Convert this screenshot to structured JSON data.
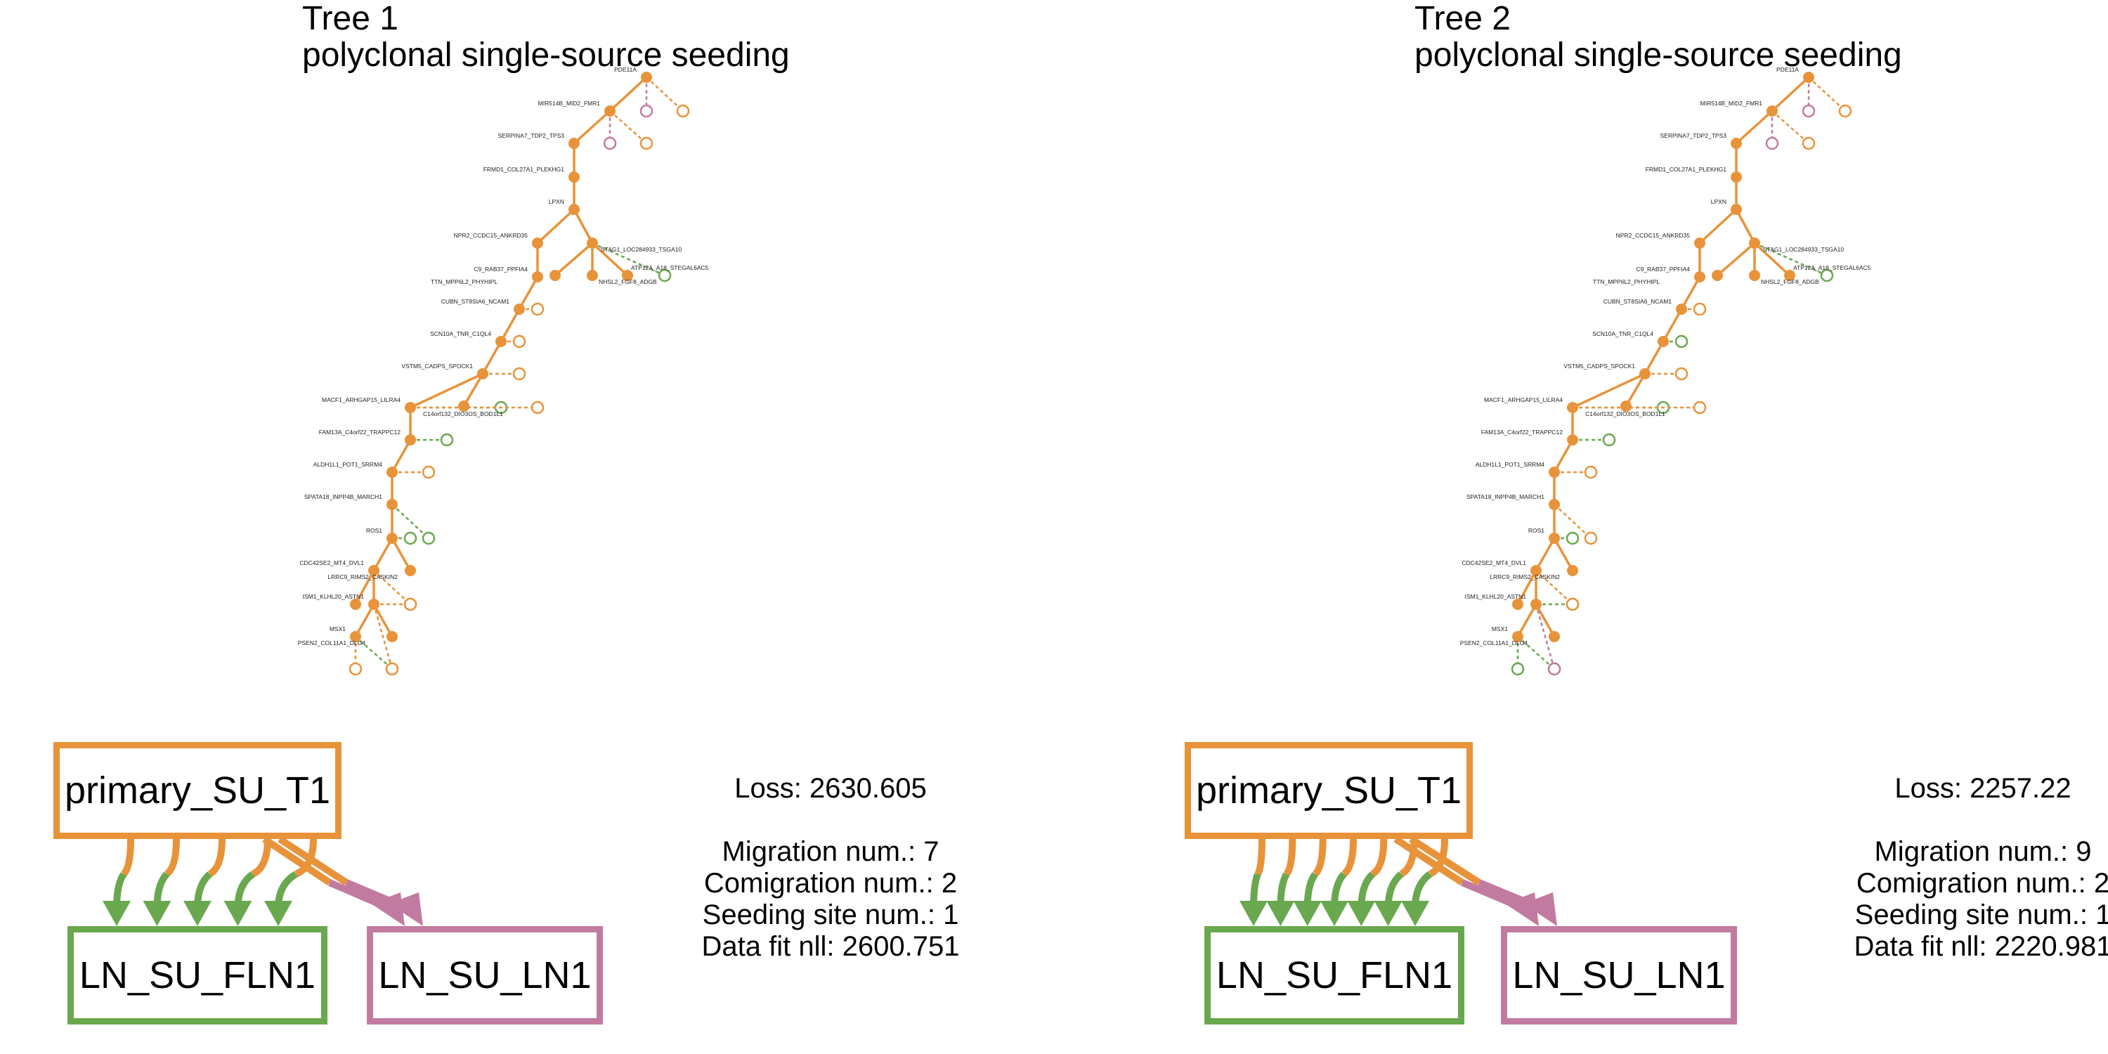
{
  "colors": {
    "primary": "#e8933a",
    "fln": "#6aa84f",
    "ln": "#c27ba0"
  },
  "panels": [
    {
      "title": "Tree 1",
      "subtitle": "polyclonal single-source seeding",
      "nodes": {
        "primary": "primary_SU_T1",
        "fln": "LN_SU_FLN1",
        "ln": "LN_SU_LN1"
      },
      "fln_arrows": 5,
      "ln_arrows": 2,
      "stats": {
        "loss": "Loss: 2630.605",
        "migration": "Migration num.: 7",
        "comigration": "Comigration num.: 2",
        "seeding": "Seeding site num.: 1",
        "datafit": "Data fit nll: 2600.751"
      },
      "leaf_colors": [
        "ln",
        "primary",
        "ln",
        "primary",
        "fln",
        "primary",
        "primary",
        "primary",
        "fln",
        "primary",
        "fln",
        "primary",
        "fln",
        "primary",
        "primary",
        "primary",
        "fln",
        "fln",
        "primary"
      ]
    },
    {
      "title": "Tree 2",
      "subtitle": "polyclonal single-source seeding",
      "nodes": {
        "primary": "primary_SU_T1",
        "fln": "LN_SU_FLN1",
        "ln": "LN_SU_LN1"
      },
      "fln_arrows": 7,
      "ln_arrows": 2,
      "stats": {
        "loss": "Loss: 2257.22",
        "migration": "Migration num.: 9",
        "comigration": "Comigration num.: 2",
        "seeding": "Seeding site num.: 1",
        "datafit": "Data fit nll: 2220.981"
      },
      "leaf_colors": [
        "ln",
        "primary",
        "ln",
        "primary",
        "fln",
        "primary",
        "fln",
        "primary",
        "fln",
        "primary",
        "fln",
        "primary",
        "fln",
        "fln",
        "primary",
        "fln",
        "fln",
        "primary"
      ]
    }
  ],
  "tree_labels": [
    "PDE11A",
    "MIR514B_MID2_FMR1",
    "SERPINA7_TDP2_TPS3",
    "FRMD1_COL27A1_PLEKHG1",
    "LPXN",
    "NPR2_CCDC15_ANKRD35",
    "STAG1_LOC284933_TSGA10",
    "ATP12A_A18_STEGAL6AC5",
    "C9_RAB37_PPFIA4",
    "TTN_MPP6L2_PHYHIPL",
    "NHSL2_FGF8_ADGB",
    "CUBN_ST8SIA6_NCAM1",
    "SCN10A_TNR_C1QL4",
    "VSTM5_CADPS_SPOCK1",
    "MACF1_ARHGAP15_LILRA4",
    "C14orf132_DIO3OS_BOD1L1",
    "FAM13A_C4orf22_TRAPPC12",
    "ALDH1L1_POT1_SRRM4",
    "SPATA18_INPP4B_MARCH1",
    "ROS1",
    "CDC42SE2_MT4_DVL1",
    "LRRC9_RIMS2_CASKIN2",
    "ISM1_KLHL20_ASTN1",
    "MSX1",
    "PSEN2_COL11A1_DLG4"
  ]
}
